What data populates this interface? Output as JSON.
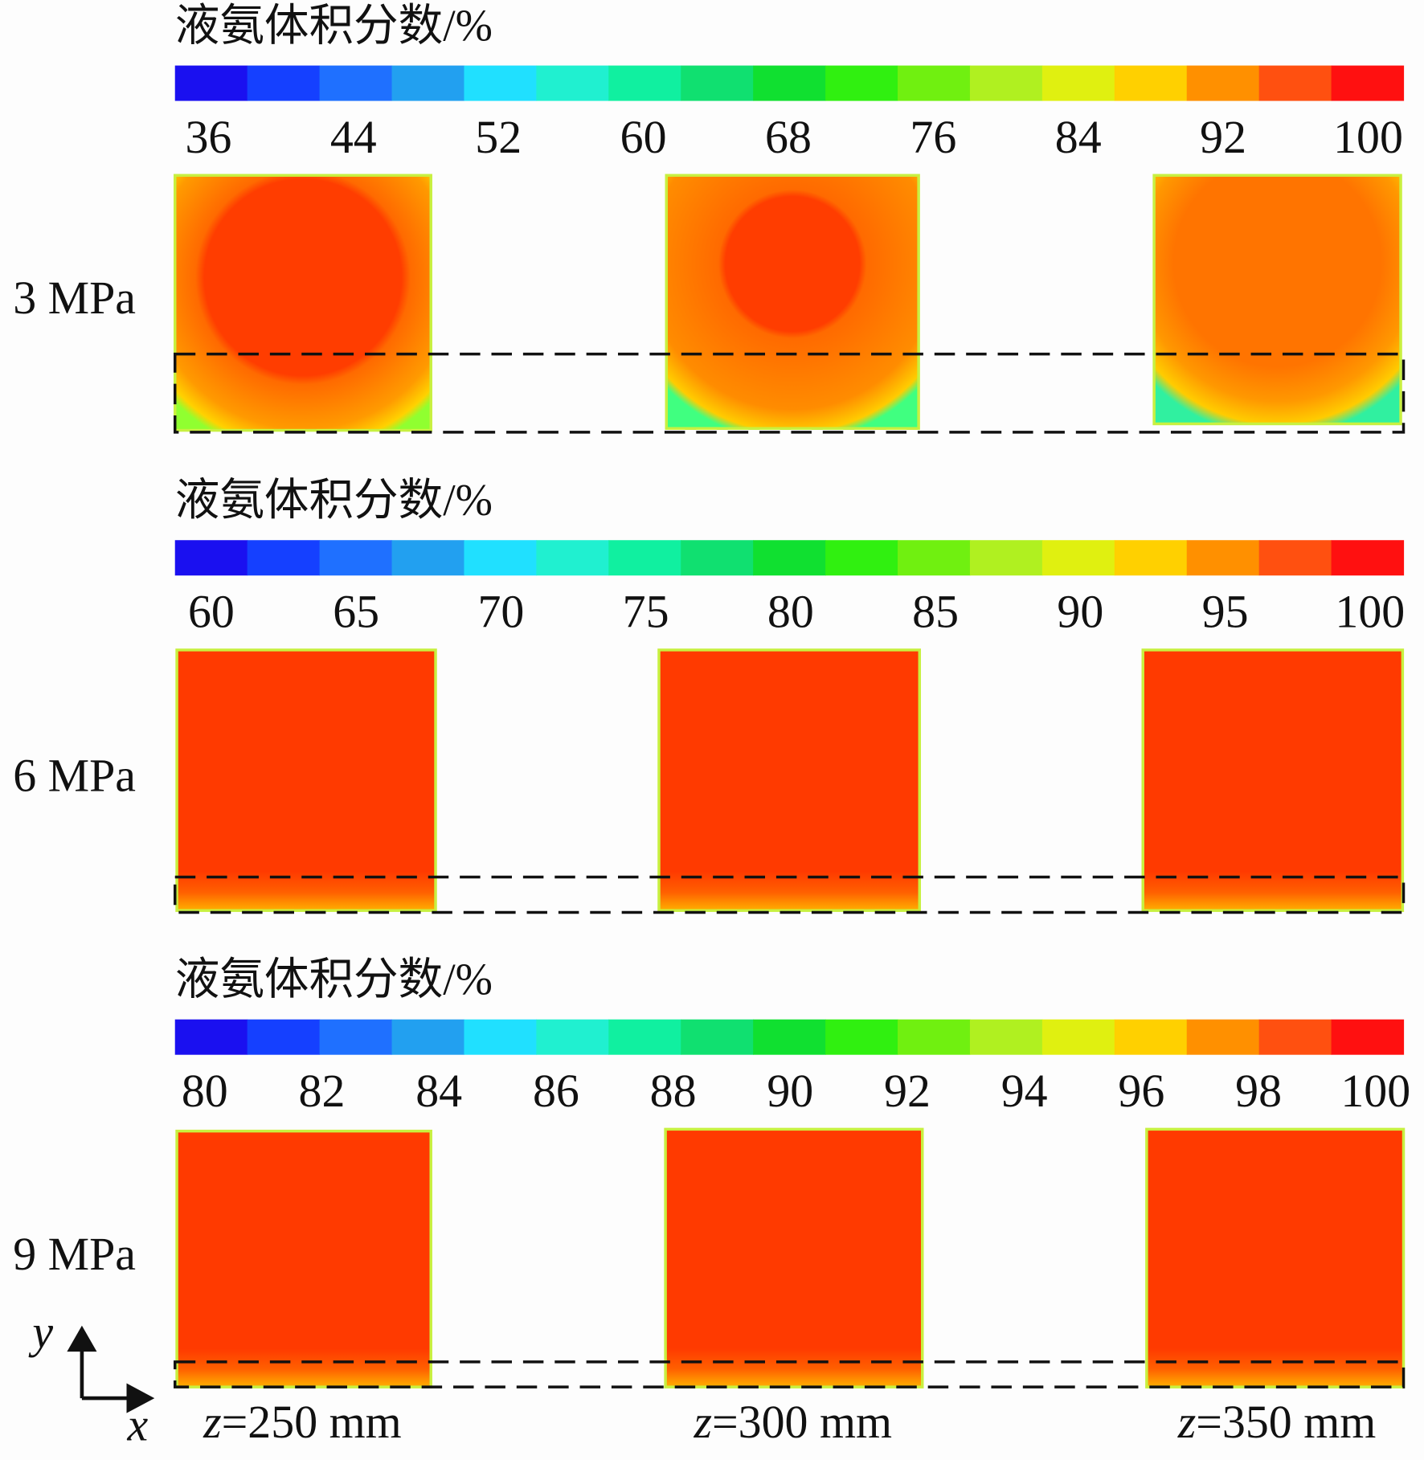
{
  "panels": [
    {
      "colorbar_title": "液氨体积分数/%",
      "ticks": [
        36,
        44,
        52,
        60,
        68,
        76,
        84,
        92,
        100
      ],
      "row_label": "3 MPa"
    },
    {
      "colorbar_title": "液氨体积分数/%",
      "ticks": [
        60,
        65,
        70,
        75,
        80,
        85,
        90,
        95,
        100
      ],
      "row_label": "6 MPa"
    },
    {
      "colorbar_title": "液氨体积分数/%",
      "ticks": [
        80,
        82,
        84,
        86,
        88,
        90,
        92,
        94,
        96,
        98,
        100
      ],
      "row_label": "9 MPa"
    }
  ],
  "columns": [
    {
      "variable": "z",
      "text": "=250 mm"
    },
    {
      "variable": "z",
      "text": "=300 mm"
    },
    {
      "variable": "z",
      "text": "=350 mm"
    }
  ],
  "axes": {
    "y": "y",
    "x": "x"
  }
}
